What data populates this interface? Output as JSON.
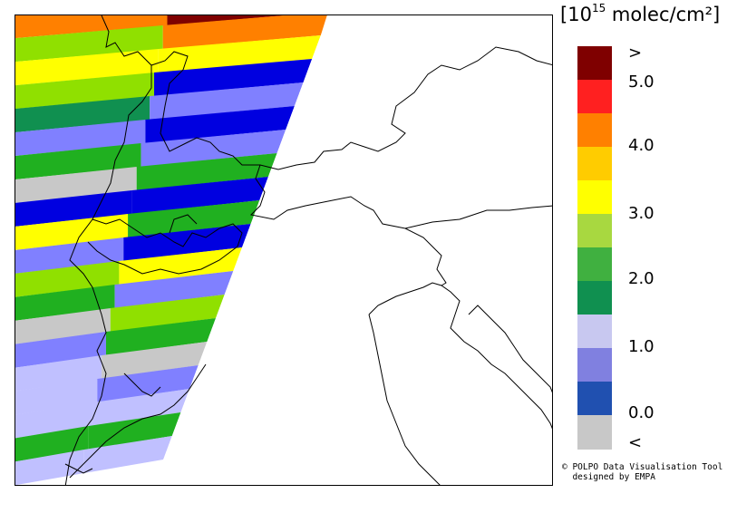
{
  "legend": {
    "unit_prefix": "10",
    "unit_exponent": "15",
    "unit_suffix": " molec/cm²",
    "colors": [
      "#7f0000",
      "#ff2020",
      "#ff8000",
      "#ffcc00",
      "#ffff00",
      "#a8d840",
      "#40b040",
      "#109050",
      "#c8c8f0",
      "#8080e0",
      "#2050b0",
      "#c8c8c8"
    ],
    "labels": [
      ">",
      "5.0",
      "4.0",
      "3.0",
      "2.0",
      "1.0",
      "0.0",
      "<"
    ]
  },
  "swath": {
    "bands": [
      {
        "left": "#ff8000",
        "right": "#7f0000"
      },
      {
        "left": "#90e000",
        "right": "#ff8000"
      },
      {
        "left": "#ffff00",
        "right": "#ffff00"
      },
      {
        "left": "#90e000",
        "right": "#0000e0"
      },
      {
        "left": "#109050",
        "right": "#8080ff"
      },
      {
        "left": "#8080ff",
        "right": "#0000e0"
      },
      {
        "left": "#20b020",
        "right": "#8080ff"
      },
      {
        "left": "#c8c8c8",
        "right": "#20b020"
      },
      {
        "left": "#0000e0",
        "right": "#0000e0"
      },
      {
        "left": "#ffff00",
        "right": "#20b020"
      },
      {
        "left": "#8080ff",
        "right": "#0000e0"
      },
      {
        "left": "#90e000",
        "right": "#ffff00"
      },
      {
        "left": "#20b020",
        "right": "#8080ff"
      },
      {
        "left": "#c8c8c8",
        "right": "#90e000"
      },
      {
        "left": "#8080ff",
        "right": "#20b020"
      },
      {
        "left": "#c0c0ff",
        "right": "#c8c8c8"
      },
      {
        "left": "#c0c0ff",
        "right": "#8080ff"
      },
      {
        "left": "#c0c0ff",
        "right": "#c0c0ff"
      },
      {
        "left": "#20b020",
        "right": "#20b020"
      },
      {
        "left": "#c0c0ff",
        "right": "#c0c0ff"
      }
    ]
  },
  "credit": {
    "line1": "© POLPO Data Visualisation Tool",
    "line2": "  designed by EMPA"
  }
}
